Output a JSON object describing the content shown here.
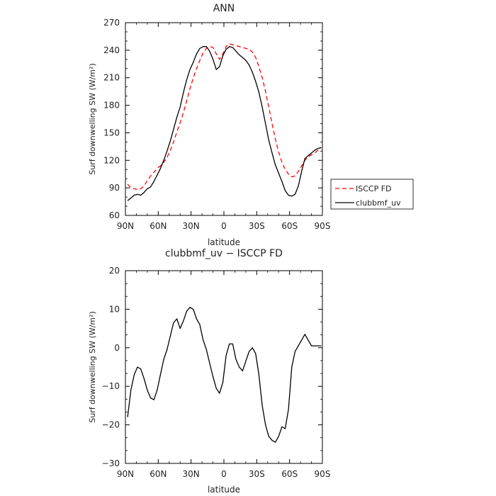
{
  "chart_data": [
    {
      "type": "line",
      "title": "ANN",
      "xlabel": "latitude",
      "ylabel": "Surf downwelling SW (W/m²)",
      "xlim": [
        -90,
        90
      ],
      "ylim": [
        60,
        270
      ],
      "x_ticks": [
        "90N",
        "60N",
        "30N",
        "0",
        "30S",
        "60S",
        "90S"
      ],
      "y_ticks": [
        "60",
        "90",
        "120",
        "150",
        "180",
        "210",
        "240",
        "270"
      ],
      "legend": {
        "placement": "outside-right"
      },
      "series": [
        {
          "name": "ISCCP FD",
          "color": "#ff0000",
          "dash": true,
          "x": [
            -88,
            -85,
            -82,
            -79,
            -76,
            -73,
            -70,
            -67,
            -64,
            -61,
            -58,
            -55,
            -52,
            -49,
            -46,
            -43,
            -40,
            -37,
            -34,
            -31,
            -28,
            -25,
            -22,
            -19,
            -16,
            -13,
            -10,
            -7,
            -4,
            -1,
            2,
            5,
            8,
            11,
            14,
            17,
            20,
            23,
            26,
            29,
            32,
            35,
            38,
            41,
            44,
            47,
            50,
            53,
            56,
            59,
            62,
            65,
            68,
            71,
            74,
            77,
            80,
            83,
            86,
            89
          ],
          "y": [
            94,
            90,
            89,
            88,
            89,
            92,
            98,
            103,
            107,
            111,
            114,
            118,
            123,
            131,
            140,
            151,
            161,
            172,
            185,
            198,
            210,
            220,
            229,
            237,
            242,
            244,
            243,
            236,
            230,
            236,
            244,
            247,
            246,
            245,
            244,
            243,
            242,
            241,
            238,
            232,
            222,
            210,
            195,
            178,
            160,
            143,
            129,
            118,
            110,
            105,
            102,
            103,
            108,
            114,
            120,
            124,
            126,
            128,
            131,
            134
          ]
        },
        {
          "name": "clubbmf_uv",
          "color": "#000000",
          "dash": false,
          "x": [
            -88,
            -85,
            -82,
            -79,
            -76,
            -73,
            -70,
            -67,
            -64,
            -61,
            -58,
            -55,
            -52,
            -49,
            -46,
            -43,
            -40,
            -37,
            -34,
            -31,
            -28,
            -25,
            -22,
            -19,
            -16,
            -13,
            -10,
            -7,
            -4,
            -1,
            2,
            5,
            8,
            11,
            14,
            17,
            20,
            23,
            26,
            29,
            32,
            35,
            38,
            41,
            44,
            47,
            50,
            53,
            56,
            59,
            62,
            65,
            68,
            71,
            74,
            77,
            80,
            83,
            86,
            89
          ],
          "y": [
            76,
            79,
            82,
            83,
            82,
            85,
            89,
            91,
            97,
            104,
            111,
            120,
            130,
            141,
            154,
            167,
            178,
            194,
            208,
            219,
            227,
            236,
            242,
            244,
            244,
            239,
            230,
            219,
            222,
            234,
            241,
            244,
            243,
            239,
            235,
            232,
            229,
            224,
            216,
            206,
            194,
            178,
            160,
            142,
            128,
            115,
            106,
            97,
            87,
            82,
            81,
            83,
            92,
            108,
            122,
            125,
            128,
            131,
            133,
            134
          ]
        }
      ]
    },
    {
      "type": "line",
      "title": "clubbmf_uv − ISCCP FD",
      "xlabel": "latitude",
      "ylabel": "Surf downwelling SW (W/m²)",
      "xlim": [
        -90,
        90
      ],
      "ylim": [
        -30,
        20
      ],
      "x_ticks": [
        "90N",
        "60N",
        "30N",
        "0",
        "30S",
        "60S",
        "90S"
      ],
      "y_ticks": [
        "−30",
        "−20",
        "−10",
        "0",
        "10",
        "20"
      ],
      "series": [
        {
          "color": "#000000",
          "dash": false,
          "x": [
            -88,
            -85,
            -82,
            -79,
            -76,
            -73,
            -70,
            -67,
            -64,
            -61,
            -58,
            -55,
            -52,
            -49,
            -46,
            -43,
            -40,
            -37,
            -34,
            -31,
            -28,
            -25,
            -22,
            -19,
            -16,
            -13,
            -10,
            -7,
            -4,
            -1,
            2,
            5,
            8,
            11,
            14,
            17,
            20,
            23,
            26,
            29,
            32,
            35,
            38,
            41,
            44,
            47,
            50,
            53,
            56,
            59,
            62,
            65,
            68,
            71,
            74,
            77,
            80,
            83,
            86,
            89
          ],
          "y": [
            -18,
            -11,
            -7,
            -5,
            -5.5,
            -8,
            -11,
            -13,
            -13.5,
            -11,
            -7,
            -3,
            -0.5,
            3,
            6.5,
            7.5,
            5,
            7,
            9.5,
            10.5,
            10,
            7.5,
            6,
            2,
            -0.5,
            -4,
            -7.5,
            -10.5,
            -11.8,
            -9,
            -2,
            1,
            1,
            -3,
            -5,
            -6,
            -3.5,
            -1,
            0,
            -1.5,
            -7,
            -15,
            -20,
            -23,
            -24,
            -24.5,
            -23,
            -20.5,
            -21,
            -16,
            -5,
            -1,
            0.5,
            2,
            3.5,
            2,
            0.5,
            0.5,
            0.5,
            0.5
          ]
        }
      ]
    }
  ]
}
